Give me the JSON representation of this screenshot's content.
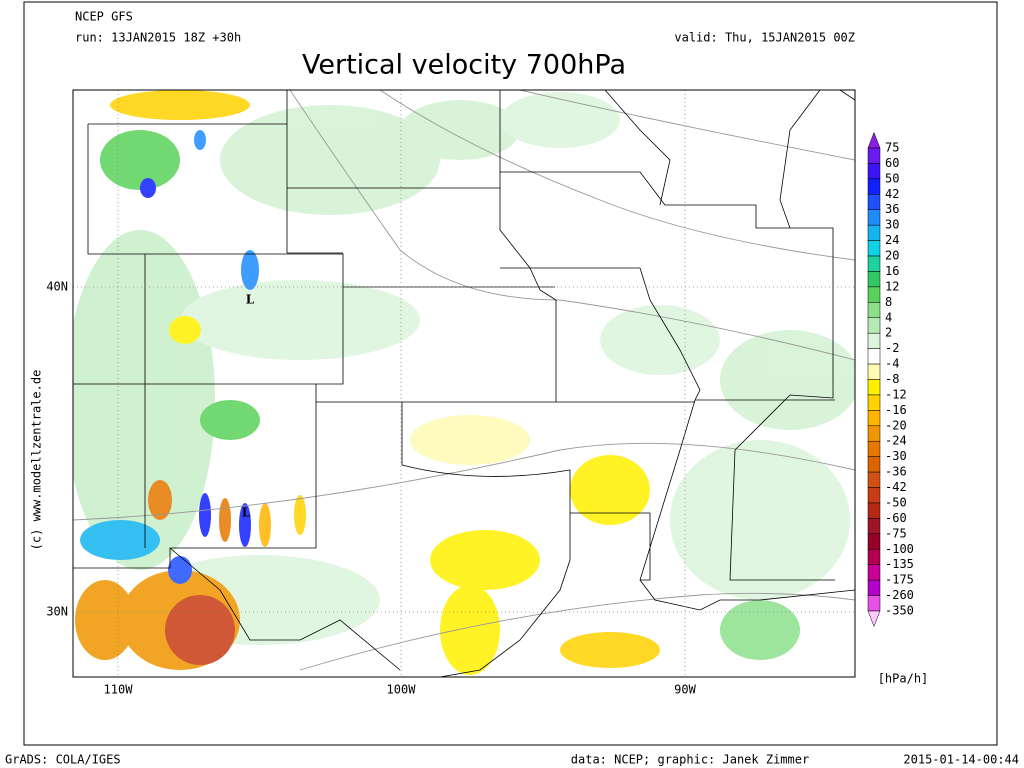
{
  "header": {
    "model": "NCEP GFS",
    "run": "run: 13JAN2015 18Z +30h",
    "valid": "valid: Thu, 15JAN2015 00Z",
    "title": "Vertical velocity 700hPa"
  },
  "map": {
    "lat_labels": [
      "40N",
      "30N"
    ],
    "lon_labels": [
      "110W",
      "100W",
      "90W"
    ],
    "low_markers": [
      "L",
      "L"
    ],
    "watermark": "(c) www.modellzentrale.de"
  },
  "colorbar": {
    "labels": [
      "75",
      "60",
      "50",
      "42",
      "36",
      "30",
      "24",
      "20",
      "16",
      "12",
      "8",
      "4",
      "2",
      "-2",
      "-4",
      "-8",
      "-12",
      "-16",
      "-20",
      "-24",
      "-30",
      "-36",
      "-42",
      "-50",
      "-60",
      "-75",
      "-100",
      "-135",
      "-175",
      "-260",
      "-350"
    ],
    "colors": [
      "#8c1ee6",
      "#6a1cf0",
      "#3c14f5",
      "#1020ff",
      "#1e50ff",
      "#1e8cff",
      "#14b4f0",
      "#10d2e6",
      "#1ed2a0",
      "#32c864",
      "#5ad25a",
      "#8ce08c",
      "#b4ebb4",
      "#dcf5dc",
      "#ffffff",
      "#fffab4",
      "#fff000",
      "#ffd200",
      "#ffb400",
      "#f09600",
      "#e67800",
      "#dc6400",
      "#d25014",
      "#c83c14",
      "#b42814",
      "#a01428",
      "#960028",
      "#b40050",
      "#c80096",
      "#b400c8",
      "#e650e6",
      "#ffc8ff"
    ],
    "unit": "[hPa/h]"
  },
  "footer": {
    "software": "GrADS: COLA/IGES",
    "credit": "data: NCEP; graphic: Janek Zimmer",
    "timestamp": "2015-01-14-00:44"
  }
}
